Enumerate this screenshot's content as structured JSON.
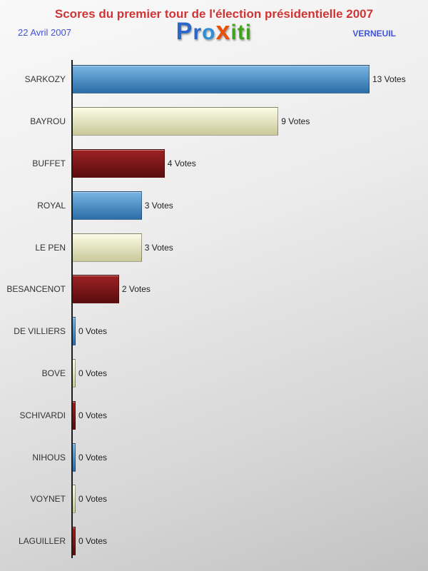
{
  "header": {
    "title": "Scores du premier tour de l'élection présidentielle 2007",
    "date": "22 Avril 2007",
    "location": "VERNEUIL",
    "logo_letters": [
      {
        "ch": "P",
        "color": "#2a66cc",
        "size": 34
      },
      {
        "ch": "r",
        "color": "#2a66cc",
        "size": 30
      },
      {
        "ch": "o",
        "color": "#2e8fd6",
        "size": 30
      },
      {
        "ch": "x",
        "color": "#e8500a",
        "size": 36
      },
      {
        "ch": "i",
        "color": "#3fa31c",
        "size": 30
      },
      {
        "ch": "t",
        "color": "#3fa31c",
        "size": 30
      },
      {
        "ch": "i",
        "color": "#3fa31c",
        "size": 30
      }
    ]
  },
  "chart_data": {
    "type": "bar",
    "orientation": "horizontal",
    "title": "Scores du premier tour de l'élection présidentielle 2007",
    "subtitle_left": "22 Avril 2007",
    "subtitle_right": "VERNEUIL",
    "categories": [
      "SARKOZY",
      "BAYROU",
      "BUFFET",
      "ROYAL",
      "LE PEN",
      "BESANCENOT",
      "DE VILLIERS",
      "BOVE",
      "SCHIVARDI",
      "NIHOUS",
      "VOYNET",
      "LAGUILLER"
    ],
    "values": [
      13,
      9,
      4,
      3,
      3,
      2,
      0,
      0,
      0,
      0,
      0,
      0
    ],
    "value_labels": [
      "13 Votes",
      "9 Votes",
      "4 Votes",
      "3 Votes",
      "3 Votes",
      "2 Votes",
      "0 Votes",
      "0 Votes",
      "0 Votes",
      "0 Votes",
      "0 Votes",
      "0 Votes"
    ],
    "xlim": [
      0,
      13
    ],
    "grid": false,
    "legend": null
  },
  "style": {
    "palette": [
      {
        "name": "blue",
        "top": "#7ab5e2",
        "bottom": "#2a6da8"
      },
      {
        "name": "cream",
        "top": "#fbfbe6",
        "bottom": "#c9c99a"
      },
      {
        "name": "darkred",
        "top": "#9e2222",
        "bottom": "#5a0d10"
      }
    ],
    "title_color": "#d03333",
    "meta_color": "#4353d9",
    "axis_color": "#1c1c1c"
  }
}
